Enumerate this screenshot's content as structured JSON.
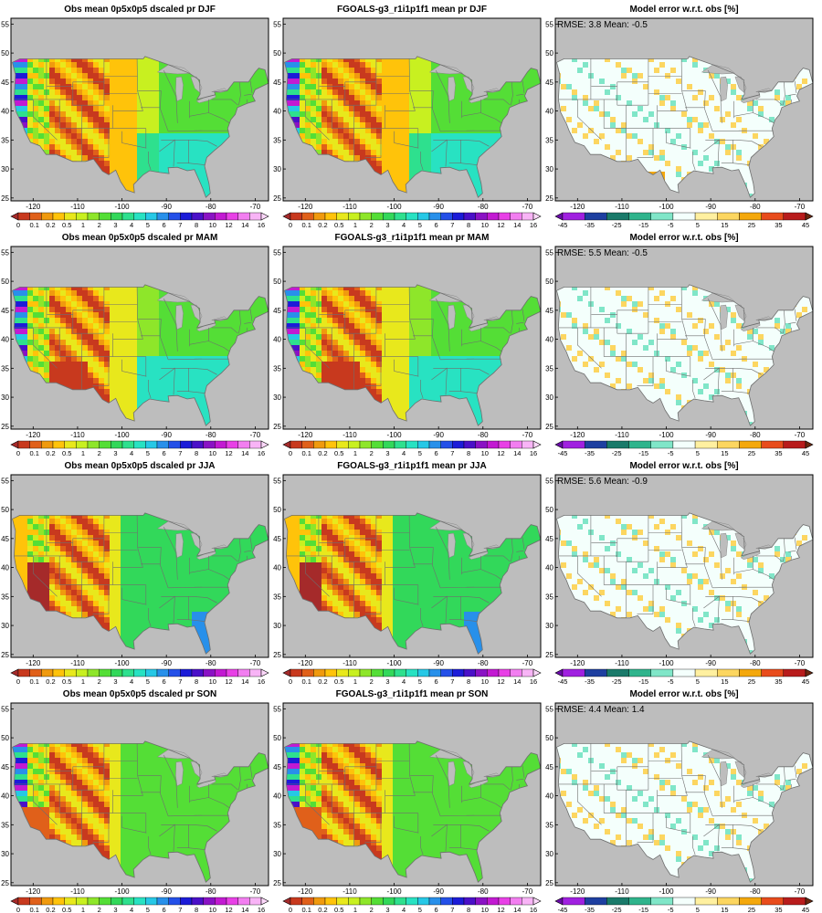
{
  "figure": {
    "rows": [
      {
        "season": "DJF",
        "panels": [
          {
            "type": "obs",
            "title": "Obs mean 0p5x0p5 dscaled pr DJF"
          },
          {
            "type": "model",
            "title": "FGOALS-g3_r1i1p1f1 mean pr DJF"
          },
          {
            "type": "error",
            "title": "Model error w.r.t. obs [%]",
            "stats": "RMSE: 3.8  Mean: -0.5"
          }
        ]
      },
      {
        "season": "MAM",
        "panels": [
          {
            "type": "obs",
            "title": "Obs mean 0p5x0p5 dscaled pr MAM"
          },
          {
            "type": "model",
            "title": "FGOALS-g3_r1i1p1f1 mean pr MAM"
          },
          {
            "type": "error",
            "title": "Model error w.r.t. obs [%]",
            "stats": "RMSE: 5.5  Mean: -0.5"
          }
        ]
      },
      {
        "season": "JJA",
        "panels": [
          {
            "type": "obs",
            "title": "Obs mean 0p5x0p5 dscaled pr JJA"
          },
          {
            "type": "model",
            "title": "FGOALS-g3_r1i1p1f1 mean pr JJA"
          },
          {
            "type": "error",
            "title": "Model error w.r.t. obs [%]",
            "stats": "RMSE: 5.6  Mean: -0.9"
          }
        ]
      },
      {
        "season": "SON",
        "panels": [
          {
            "type": "obs",
            "title": "Obs mean 0p5x0p5 dscaled pr SON"
          },
          {
            "type": "model",
            "title": "FGOALS-g3_r1i1p1f1 mean pr SON"
          },
          {
            "type": "error",
            "title": "Model error w.r.t. obs [%]",
            "stats": "RMSE: 4.4  Mean: 1.4"
          }
        ]
      }
    ],
    "lon_ticks": [
      "-120",
      "-110",
      "-100",
      "-90",
      "-80",
      "-70"
    ],
    "lat_ticks": [
      "55",
      "50",
      "45",
      "40",
      "35",
      "30",
      "25"
    ],
    "precip_colorbar": {
      "labels": [
        "0",
        "0.1",
        "0.2",
        "0.5",
        "1",
        "2",
        "3",
        "4",
        "5",
        "6",
        "7",
        "8",
        "10",
        "12",
        "14",
        "16"
      ],
      "colors": [
        "#a52a2a",
        "#c8391e",
        "#e0601a",
        "#f09a0e",
        "#ffc30a",
        "#e8e81c",
        "#c8f020",
        "#8ee62a",
        "#54de36",
        "#32d85a",
        "#2ee08e",
        "#28e2c2",
        "#26c8e6",
        "#2890ea",
        "#2450e8",
        "#1c1cd8",
        "#4a10c8",
        "#8a12c4",
        "#c21ad2",
        "#e840e6",
        "#f27ef0",
        "#f8b4f6",
        "#fcd8fa"
      ]
    },
    "error_colorbar": {
      "labels": [
        "-45",
        "-35",
        "-25",
        "-15",
        "-5",
        "5",
        "15",
        "25",
        "35",
        "45"
      ],
      "colors": [
        "#6a0ca8",
        "#a020e0",
        "#1e3fa0",
        "#1a7a6a",
        "#2fb48c",
        "#80e6c8",
        "#f4fffc",
        "#fff0a0",
        "#fcd660",
        "#f4a80c",
        "#e84c1c",
        "#b81c1c",
        "#6a2810"
      ]
    }
  }
}
